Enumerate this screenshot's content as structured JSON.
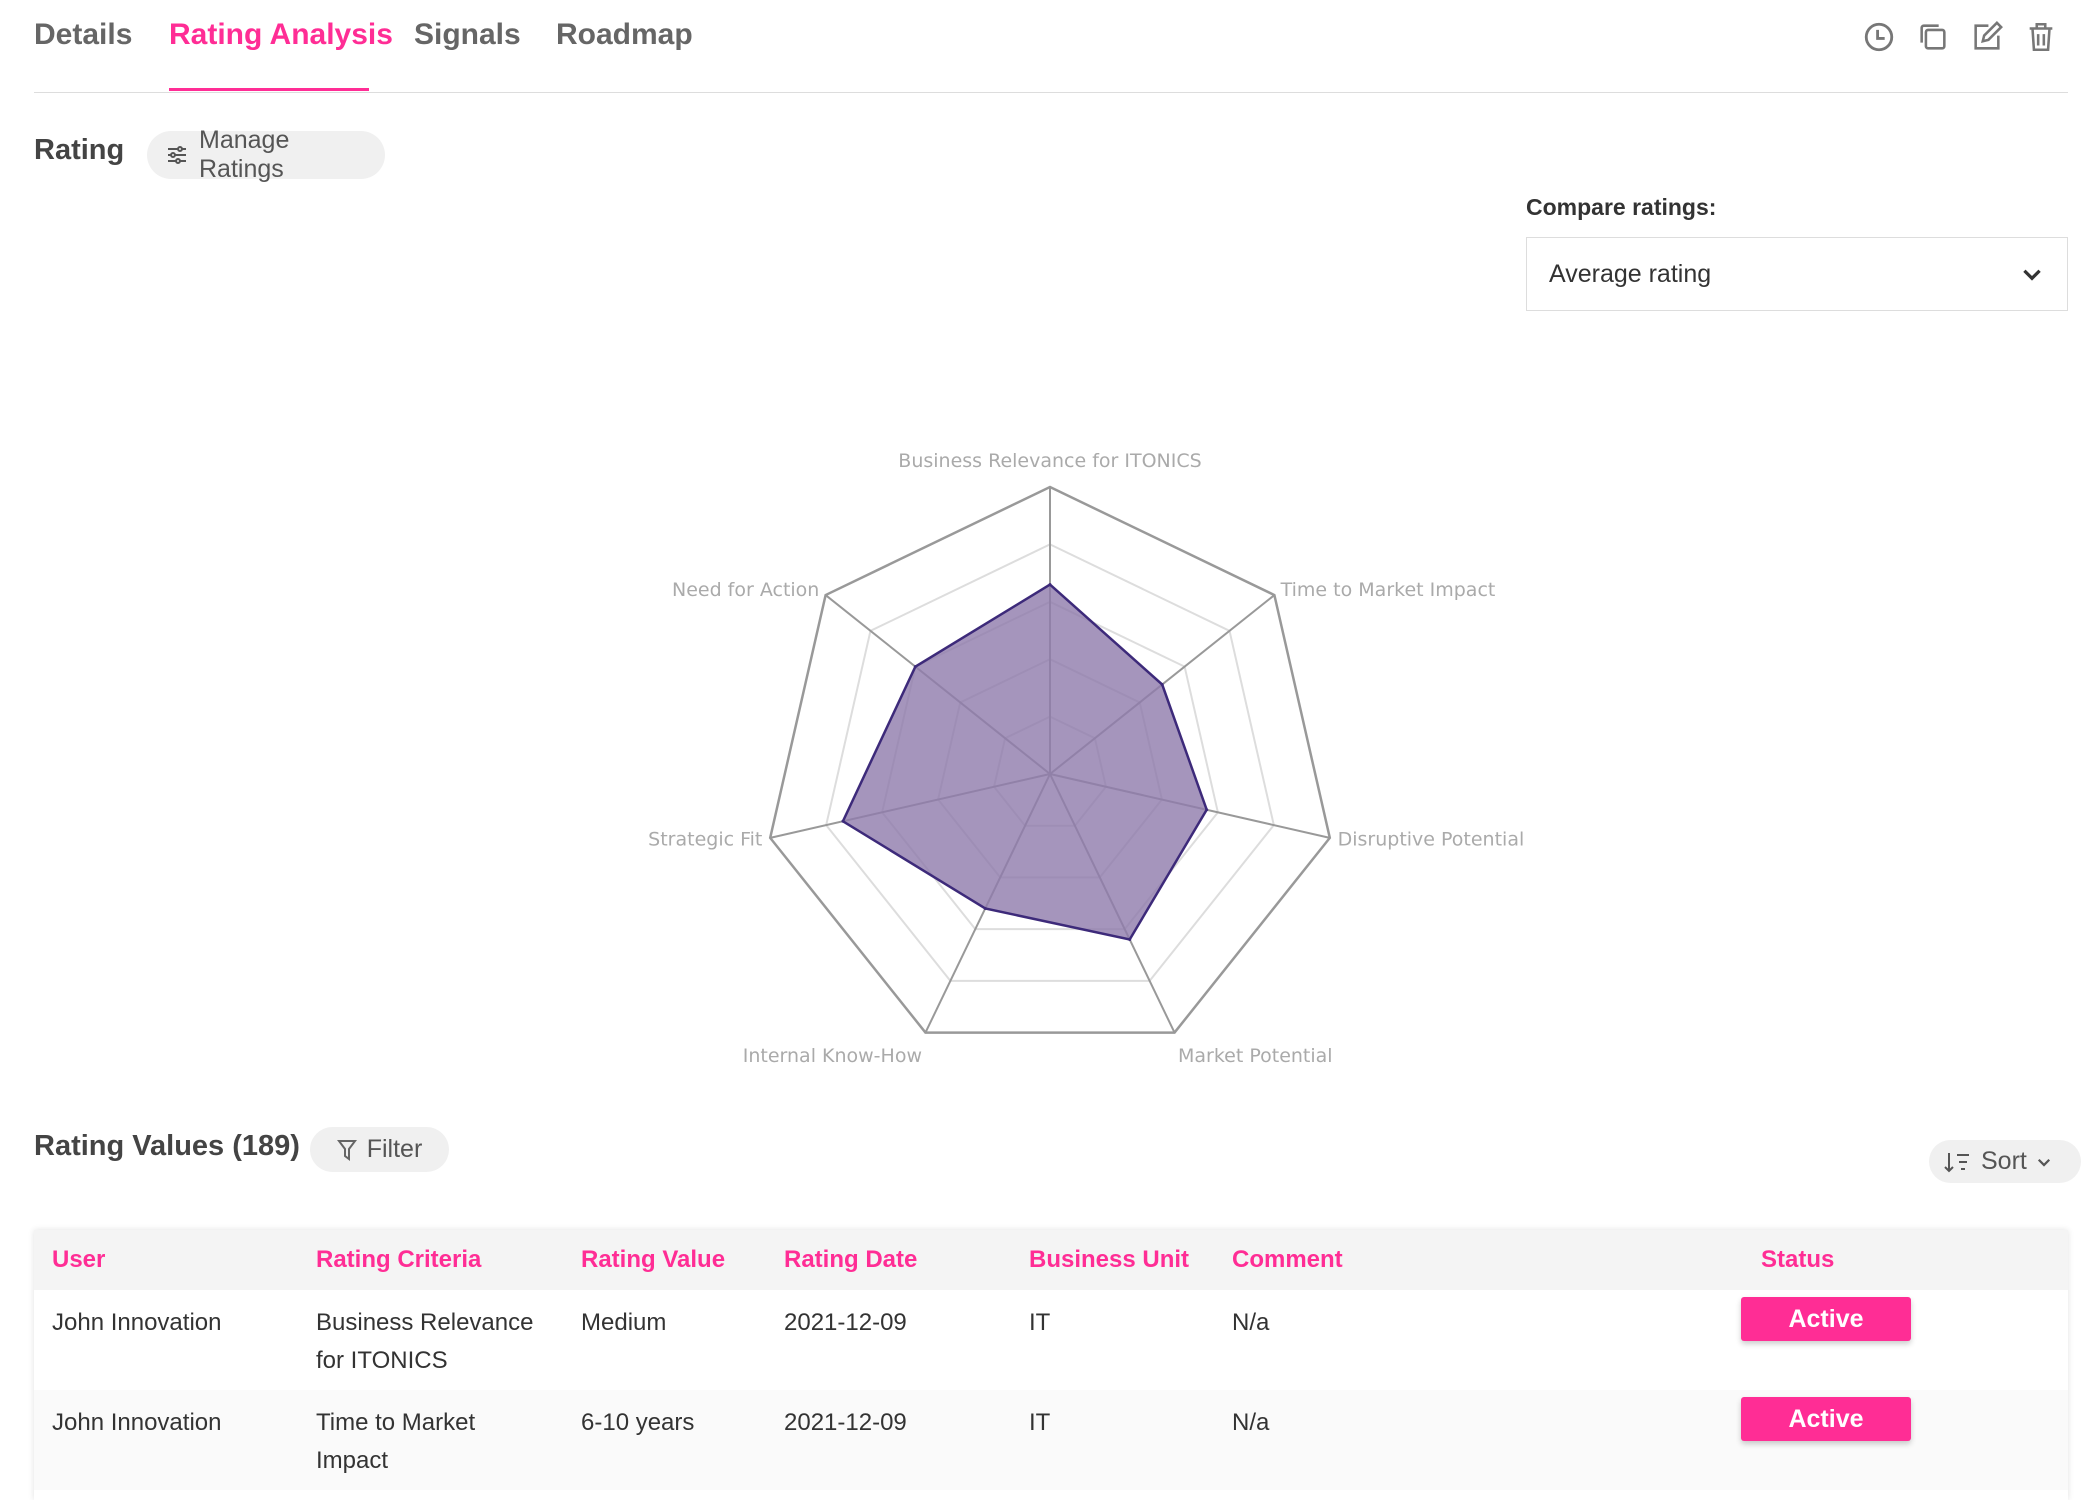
{
  "tabs": [
    {
      "label": "Details",
      "active": false
    },
    {
      "label": "Rating Analysis",
      "active": true
    },
    {
      "label": "Signals",
      "active": false
    },
    {
      "label": "Roadmap",
      "active": false
    }
  ],
  "toolbar_icons": [
    "clock-icon",
    "copy-icon",
    "edit-icon",
    "trash-icon"
  ],
  "rating": {
    "title": "Rating",
    "manage_label": "Manage Ratings",
    "compare_label": "Compare ratings:",
    "compare_value": "Average rating"
  },
  "chart_data": {
    "type": "radar",
    "axes": [
      "Business Relevance for ITONICS",
      "Time to Market Impact",
      "Disruptive Potential",
      "Market Potential",
      "Internal Know-How",
      "Strategic Fit",
      "Need for Action"
    ],
    "rlim": [
      0,
      5
    ],
    "grid_levels": 5,
    "series": [
      {
        "values": [
          3.3,
          2.5,
          2.8,
          3.2,
          2.6,
          3.7,
          3.0
        ],
        "fill": "#8e7bab",
        "stroke": "#3d2a7a"
      }
    ]
  },
  "values_section": {
    "title": "Rating Values (189)",
    "filter_label": "Filter",
    "sort_label": "Sort"
  },
  "table": {
    "columns": [
      "User",
      "Rating Criteria",
      "Rating Value",
      "Rating Date",
      "Business Unit",
      "Comment",
      "Status"
    ],
    "rows": [
      [
        "John Innovation",
        "Business Relevance for ITONICS",
        "Medium",
        "2021-12-09",
        "IT",
        "N/a",
        "Active"
      ],
      [
        "John Innovation",
        "Time to Market Impact",
        "6-10 years",
        "2021-12-09",
        "IT",
        "N/a",
        "Active"
      ]
    ]
  },
  "colors": {
    "accent": "#ff2d95",
    "radar_fill": "#8e7bab",
    "radar_stroke": "#3d2a7a"
  }
}
